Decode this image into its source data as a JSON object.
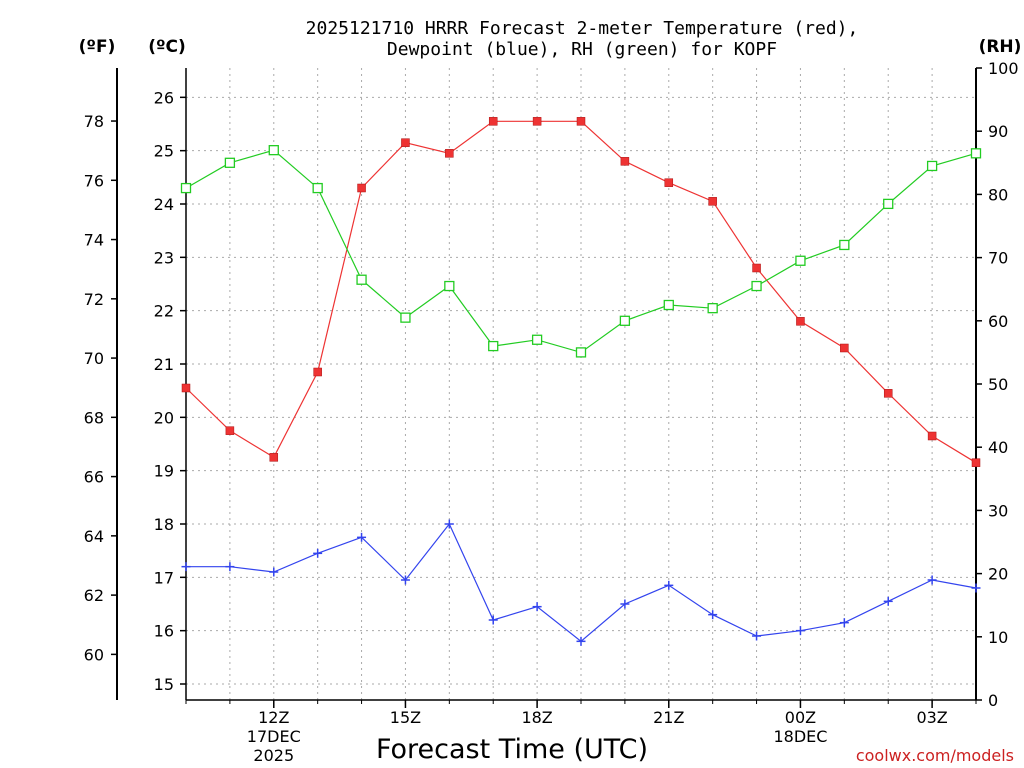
{
  "chart_data": {
    "type": "line",
    "title": "2025121710 HRRR Forecast 2-meter Temperature (red),",
    "subtitle": "Dewpoint (blue), RH (green) for KOPF",
    "xlabel": "Forecast Time (UTC)",
    "credit": "coolwx.com/models",
    "axes": {
      "left_outer_unit": "(ºF)",
      "left_inner_unit": "(ºC)",
      "right_unit": "(RH)",
      "celsius_range": [
        14.7,
        26.55
      ],
      "rh_range": [
        0,
        100
      ]
    },
    "x": [
      10,
      11,
      12,
      13,
      14,
      15,
      16,
      17,
      18,
      19,
      20,
      21,
      22,
      23,
      24,
      25,
      26,
      27,
      28
    ],
    "x_ticks": [
      {
        "hour": 12,
        "label": "12Z",
        "line2": "17DEC",
        "line3": "2025"
      },
      {
        "hour": 15,
        "label": "15Z",
        "line2": "",
        "line3": ""
      },
      {
        "hour": 18,
        "label": "18Z",
        "line2": "",
        "line3": ""
      },
      {
        "hour": 21,
        "label": "21Z",
        "line2": "",
        "line3": ""
      },
      {
        "hour": 24,
        "label": "00Z",
        "line2": "18DEC",
        "line3": ""
      },
      {
        "hour": 27,
        "label": "03Z",
        "line2": "",
        "line3": ""
      }
    ],
    "celsius_ticks": [
      "15",
      "16",
      "17",
      "18",
      "19",
      "20",
      "21",
      "22",
      "23",
      "24",
      "25",
      "26"
    ],
    "fahrenheit_ticks": [
      "60",
      "62",
      "64",
      "66",
      "68",
      "70",
      "72",
      "74",
      "76",
      "78"
    ],
    "rh_ticks": [
      "0",
      "10",
      "20",
      "30",
      "40",
      "50",
      "60",
      "70",
      "80",
      "90",
      "100"
    ],
    "series": [
      {
        "name": "2-meter Temperature",
        "color": "#ee3333",
        "axis": "celsius",
        "marker": "filled-square",
        "values": [
          20.55,
          19.75,
          19.25,
          20.85,
          24.3,
          25.15,
          24.95,
          25.55,
          25.55,
          25.55,
          24.8,
          24.4,
          24.05,
          22.8,
          21.8,
          21.3,
          20.45,
          19.65,
          19.15
        ]
      },
      {
        "name": "Dewpoint",
        "color": "#3344ee",
        "axis": "celsius",
        "marker": "plus",
        "values": [
          17.2,
          17.2,
          17.1,
          17.45,
          17.75,
          16.95,
          18.0,
          16.2,
          16.45,
          15.8,
          16.5,
          16.85,
          16.3,
          15.9,
          16.0,
          16.15,
          16.55,
          16.95,
          16.8
        ]
      },
      {
        "name": "RH",
        "color": "#22cc22",
        "axis": "rh",
        "marker": "open-square",
        "values": [
          81,
          85,
          87,
          81,
          66.5,
          60.5,
          65.5,
          56,
          57,
          55,
          60,
          62.5,
          62,
          65.5,
          69.5,
          72,
          78.5,
          84.5,
          86.5
        ]
      }
    ]
  }
}
